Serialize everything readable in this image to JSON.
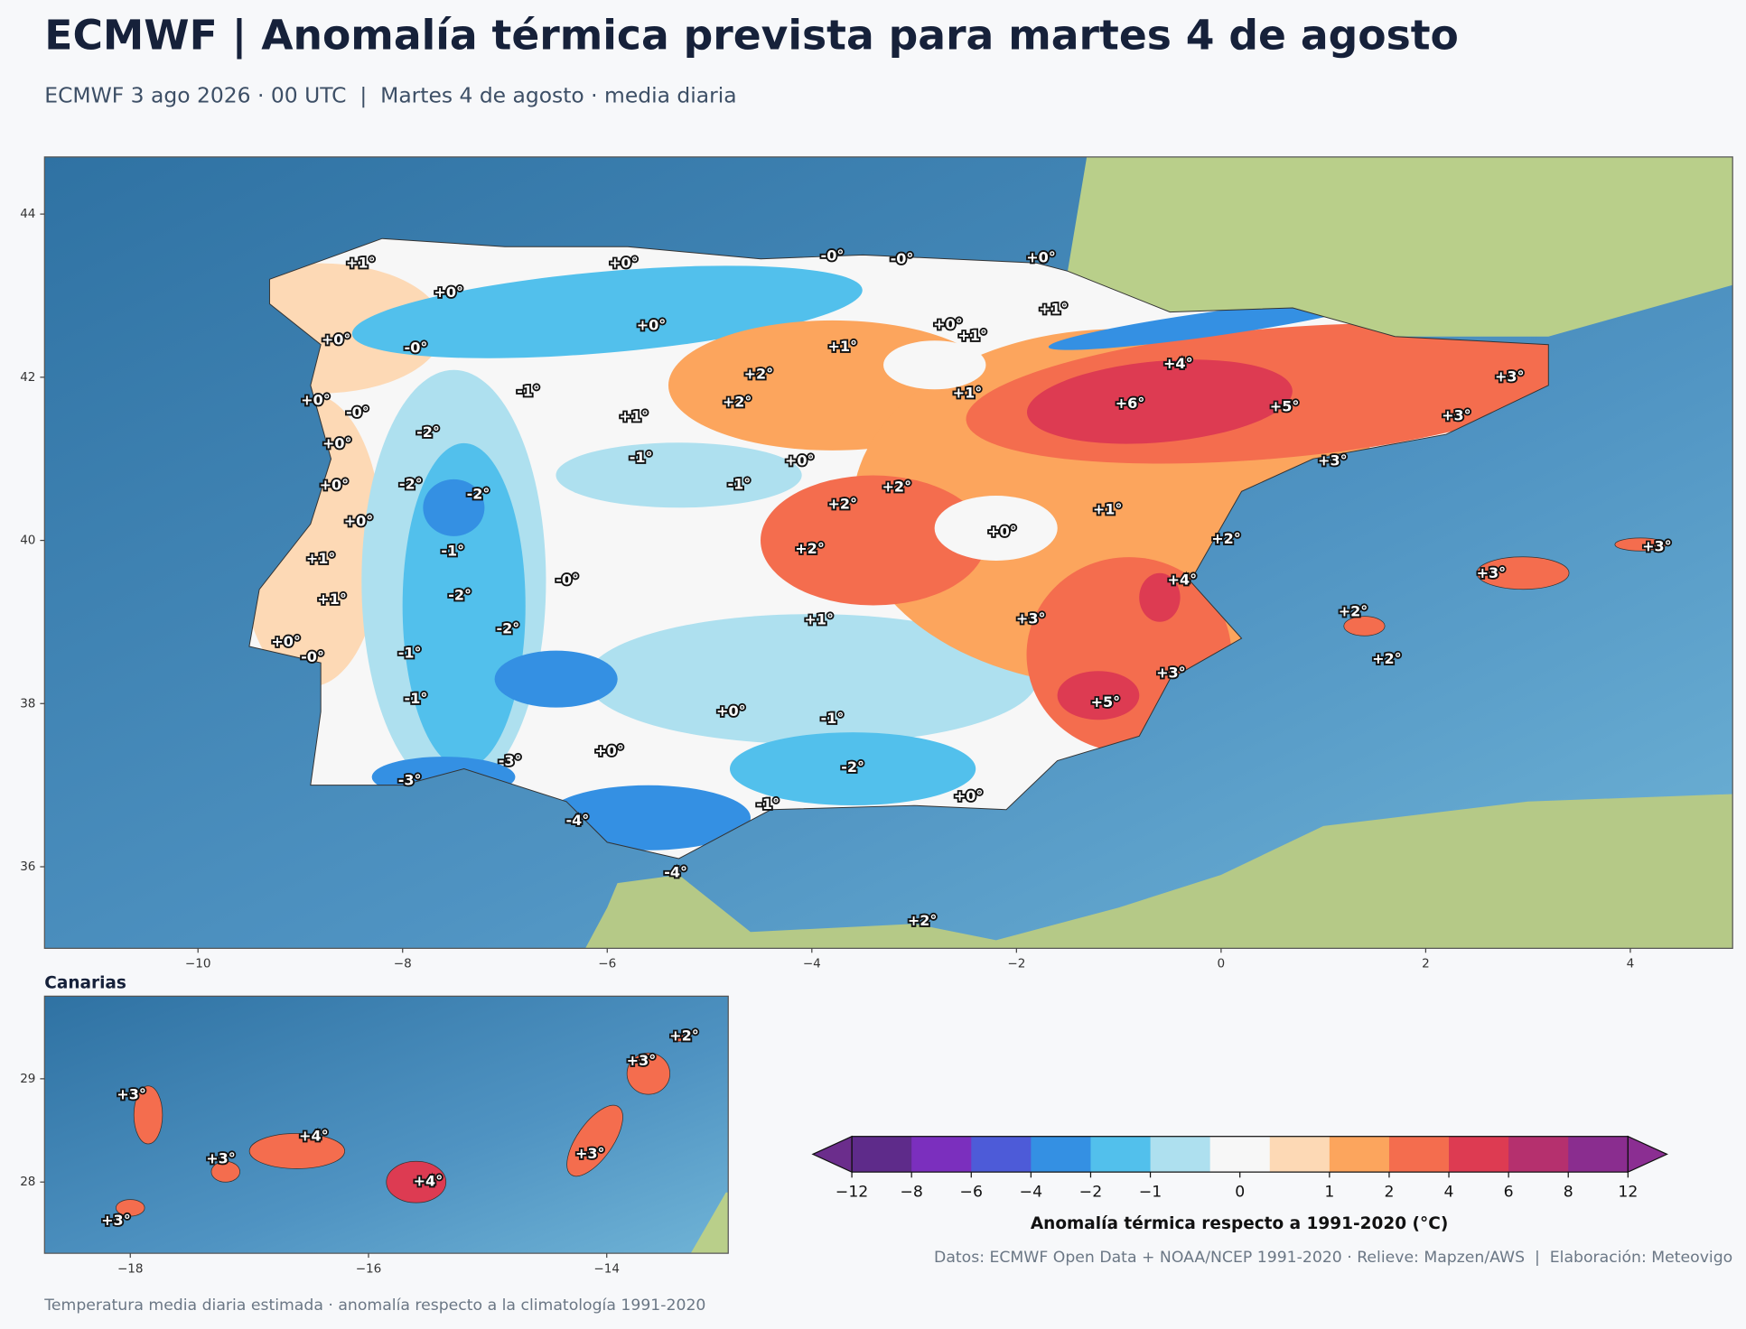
{
  "title": "ECMWF | Anomalía térmica prevista para martes 4 de agosto",
  "subtitle": "ECMWF 3 ago 2026 · 00 UTC  |  Martes 4 de agosto · media diaria",
  "main_map": {
    "xlim": [
      -11.5,
      5
    ],
    "ylim": [
      35,
      44.7
    ],
    "xticks": [
      {
        "value": -10,
        "label": "−10"
      },
      {
        "value": -8,
        "label": "−8"
      },
      {
        "value": -6,
        "label": "−6"
      },
      {
        "value": -4,
        "label": "−4"
      },
      {
        "value": -2,
        "label": "−2"
      },
      0,
      2,
      4
    ],
    "yticks": [
      36,
      38,
      40,
      42,
      44
    ],
    "labels": [
      {
        "lon": -8.41,
        "lat": 43.39,
        "text": "+1°"
      },
      {
        "lon": -7.55,
        "lat": 43.03,
        "text": "+0°"
      },
      {
        "lon": -5.84,
        "lat": 43.39,
        "text": "+0°"
      },
      {
        "lon": -3.8,
        "lat": 43.48,
        "text": "-0°"
      },
      {
        "lon": -3.12,
        "lat": 43.44,
        "text": "-0°"
      },
      {
        "lon": -1.76,
        "lat": 43.46,
        "text": "+0°"
      },
      {
        "lon": -5.57,
        "lat": 42.63,
        "text": "+0°"
      },
      {
        "lon": -8.65,
        "lat": 42.45,
        "text": "+0°"
      },
      {
        "lon": -7.87,
        "lat": 42.35,
        "text": "-0°"
      },
      {
        "lon": -2.67,
        "lat": 42.64,
        "text": "+0°"
      },
      {
        "lon": -2.43,
        "lat": 42.5,
        "text": "+1°"
      },
      {
        "lon": -1.64,
        "lat": 42.83,
        "text": "+1°"
      },
      {
        "lon": -3.7,
        "lat": 42.37,
        "text": "+1°"
      },
      {
        "lon": -4.52,
        "lat": 42.03,
        "text": "+2°"
      },
      {
        "lon": -0.42,
        "lat": 42.16,
        "text": "+4°"
      },
      {
        "lon": 2.82,
        "lat": 42.0,
        "text": "+3°"
      },
      {
        "lon": -8.85,
        "lat": 41.71,
        "text": "+0°"
      },
      {
        "lon": -8.44,
        "lat": 41.56,
        "text": "-0°"
      },
      {
        "lon": -6.77,
        "lat": 41.82,
        "text": "-1°"
      },
      {
        "lon": -4.73,
        "lat": 41.69,
        "text": "+2°"
      },
      {
        "lon": -5.74,
        "lat": 41.51,
        "text": "+1°"
      },
      {
        "lon": -2.48,
        "lat": 41.8,
        "text": "+1°"
      },
      {
        "lon": -0.89,
        "lat": 41.67,
        "text": "+6°"
      },
      {
        "lon": 0.62,
        "lat": 41.63,
        "text": "+5°"
      },
      {
        "lon": 2.3,
        "lat": 41.52,
        "text": "+3°"
      },
      {
        "lon": -7.75,
        "lat": 41.32,
        "text": "-2°"
      },
      {
        "lon": -8.64,
        "lat": 41.18,
        "text": "+0°"
      },
      {
        "lon": -5.67,
        "lat": 41.01,
        "text": "-1°"
      },
      {
        "lon": -4.12,
        "lat": 40.97,
        "text": "+0°"
      },
      {
        "lon": 1.09,
        "lat": 40.97,
        "text": "+3°"
      },
      {
        "lon": -8.67,
        "lat": 40.67,
        "text": "+0°"
      },
      {
        "lon": -7.92,
        "lat": 40.68,
        "text": "-2°"
      },
      {
        "lon": -7.26,
        "lat": 40.56,
        "text": "-2°"
      },
      {
        "lon": -4.71,
        "lat": 40.68,
        "text": "-1°"
      },
      {
        "lon": -3.17,
        "lat": 40.65,
        "text": "+2°"
      },
      {
        "lon": -3.7,
        "lat": 40.44,
        "text": "+2°"
      },
      {
        "lon": -1.11,
        "lat": 40.37,
        "text": "+1°"
      },
      {
        "lon": -8.43,
        "lat": 40.23,
        "text": "+0°"
      },
      {
        "lon": -2.14,
        "lat": 40.1,
        "text": "+0°"
      },
      {
        "lon": 0.05,
        "lat": 40.01,
        "text": "+2°"
      },
      {
        "lon": 4.26,
        "lat": 39.92,
        "text": "+3°"
      },
      {
        "lon": -7.51,
        "lat": 39.86,
        "text": "-1°"
      },
      {
        "lon": -4.02,
        "lat": 39.89,
        "text": "+2°"
      },
      {
        "lon": -8.8,
        "lat": 39.77,
        "text": "+1°"
      },
      {
        "lon": -6.39,
        "lat": 39.51,
        "text": "-0°"
      },
      {
        "lon": -0.38,
        "lat": 39.51,
        "text": "+4°"
      },
      {
        "lon": 2.64,
        "lat": 39.59,
        "text": "+3°"
      },
      {
        "lon": -8.69,
        "lat": 39.27,
        "text": "+1°"
      },
      {
        "lon": -7.44,
        "lat": 39.32,
        "text": "-2°"
      },
      {
        "lon": -3.93,
        "lat": 39.02,
        "text": "+1°"
      },
      {
        "lon": -1.86,
        "lat": 39.03,
        "text": "+3°"
      },
      {
        "lon": 1.29,
        "lat": 39.12,
        "text": "+2°"
      },
      {
        "lon": -6.97,
        "lat": 38.91,
        "text": "-2°"
      },
      {
        "lon": -9.14,
        "lat": 38.75,
        "text": "+0°"
      },
      {
        "lon": -8.88,
        "lat": 38.56,
        "text": "-0°"
      },
      {
        "lon": -7.93,
        "lat": 38.61,
        "text": "-1°"
      },
      {
        "lon": 1.62,
        "lat": 38.54,
        "text": "+2°"
      },
      {
        "lon": -0.49,
        "lat": 38.37,
        "text": "+3°"
      },
      {
        "lon": -7.87,
        "lat": 38.05,
        "text": "-1°"
      },
      {
        "lon": -1.13,
        "lat": 38.01,
        "text": "+5°"
      },
      {
        "lon": -4.79,
        "lat": 37.9,
        "text": "+0°"
      },
      {
        "lon": -3.8,
        "lat": 37.81,
        "text": "-1°"
      },
      {
        "lon": -5.98,
        "lat": 37.41,
        "text": "+0°"
      },
      {
        "lon": -6.95,
        "lat": 37.29,
        "text": "-3°"
      },
      {
        "lon": -3.6,
        "lat": 37.21,
        "text": "-2°"
      },
      {
        "lon": -7.93,
        "lat": 37.05,
        "text": "-3°"
      },
      {
        "lon": -2.47,
        "lat": 36.86,
        "text": "+0°"
      },
      {
        "lon": -4.43,
        "lat": 36.76,
        "text": "-1°"
      },
      {
        "lon": -6.29,
        "lat": 36.56,
        "text": "-4°"
      },
      {
        "lon": -5.33,
        "lat": 35.92,
        "text": "-4°"
      },
      {
        "lon": -2.92,
        "lat": 35.33,
        "text": "+2°"
      }
    ]
  },
  "canarias": {
    "title": "Canarias",
    "xlim": [
      -18.72,
      -12.98
    ],
    "ylim": [
      27.31,
      29.8
    ],
    "xticks": [
      {
        "value": -18,
        "label": "−18"
      },
      {
        "value": -16,
        "label": "−16"
      },
      {
        "value": -14,
        "label": "−14"
      }
    ],
    "yticks": [
      28,
      29
    ],
    "labels": [
      {
        "lon": -17.99,
        "lat": 28.84,
        "text": "+3°"
      },
      {
        "lon": -17.24,
        "lat": 28.22,
        "text": "+3°"
      },
      {
        "lon": -16.46,
        "lat": 28.44,
        "text": "+4°"
      },
      {
        "lon": -15.5,
        "lat": 28.0,
        "text": "+4°"
      },
      {
        "lon": -14.14,
        "lat": 28.27,
        "text": "+3°"
      },
      {
        "lon": -13.71,
        "lat": 29.17,
        "text": "+3°"
      },
      {
        "lon": -13.35,
        "lat": 29.41,
        "text": "+2°"
      },
      {
        "lon": -18.12,
        "lat": 27.62,
        "text": "+3°"
      }
    ]
  },
  "colorbar": {
    "label": "Anomalía térmica respecto a 1991-2020 (°C)",
    "boundaries": [
      -12,
      -8,
      -6,
      -4,
      -2,
      -1,
      -0.5,
      0.5,
      1,
      2,
      4,
      6,
      8,
      12
    ],
    "colors": [
      "#5e2b8a",
      "#7b2fbe",
      "#4d5bd8",
      "#3490e3",
      "#52c0ec",
      "#aee0ef",
      "#f7f7f7",
      "#fdd9b5",
      "#fca55d",
      "#f46d4e",
      "#dd3b52",
      "#b5306e",
      "#8a2d8f"
    ],
    "extend_colors": [
      "#6b2d8c",
      "#8b2e92"
    ],
    "ticks": [
      {
        "value": -12,
        "label": "−12"
      },
      {
        "value": -8,
        "label": "−8"
      },
      {
        "value": -6,
        "label": "−6"
      },
      {
        "value": -4,
        "label": "−4"
      },
      {
        "value": -2,
        "label": "−2"
      },
      {
        "value": -1,
        "label": "−1"
      },
      0,
      1,
      2,
      4,
      6,
      8,
      12
    ]
  },
  "credits": "Datos: ECMWF Open Data + NOAA/NCEP 1991-2020 · Relieve: Mapzen/AWS  |  Elaboración: Meteovigo",
  "footer": "Temperatura media diaria estimada · anomalía respecto a la climatología 1991-2020"
}
